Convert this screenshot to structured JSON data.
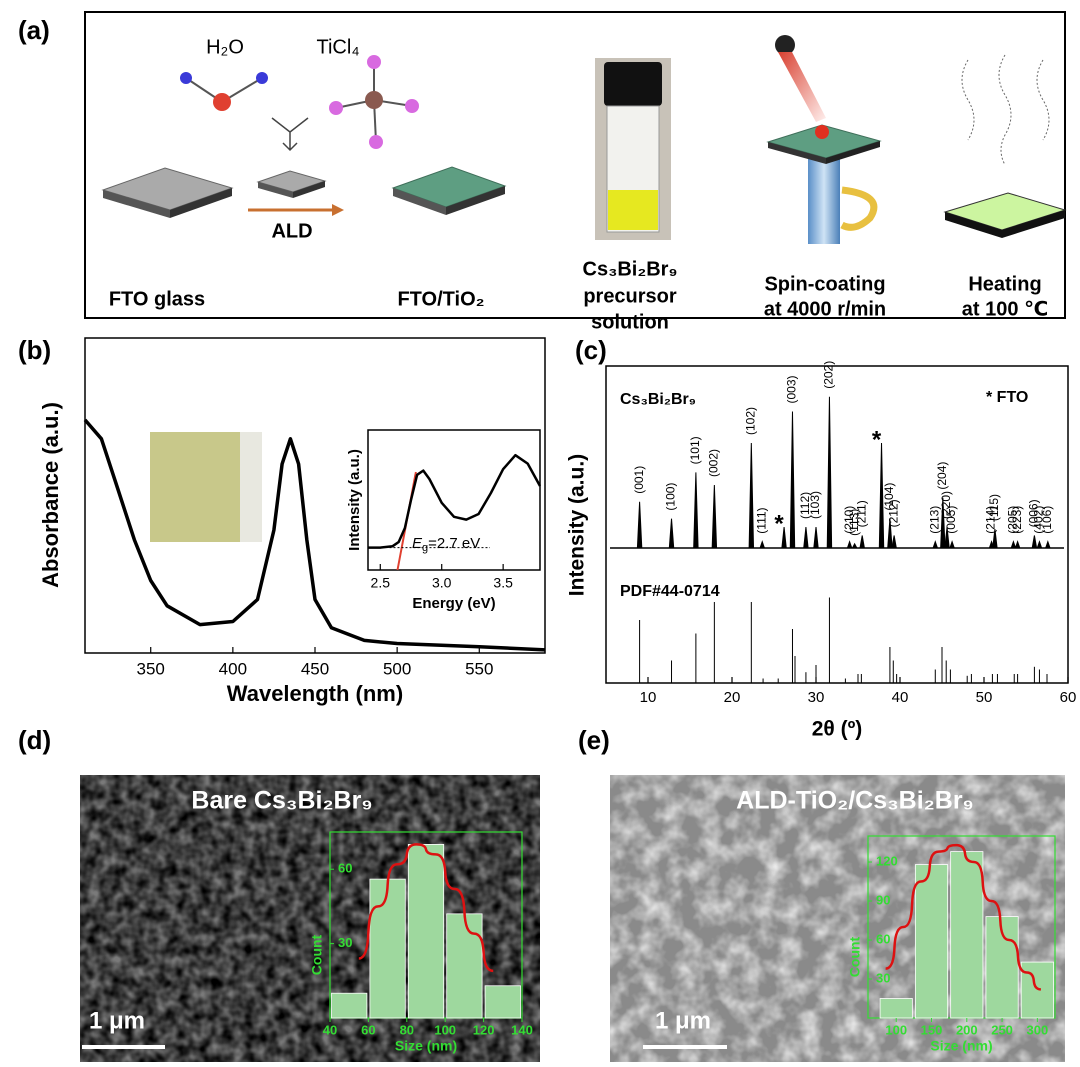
{
  "panel_labels": [
    "(a)",
    "(b)",
    "(c)",
    "(d)",
    "(e)"
  ],
  "panel_a": {
    "molecules": [
      "H₂O",
      "TiCl₄"
    ],
    "process": "ALD",
    "steps": [
      [
        "FTO glass"
      ],
      [
        "FTO/TiO₂"
      ],
      [
        "Cs₃Bi₂Br₉",
        "precursor",
        "solution"
      ],
      [
        "Spin-coating",
        "at 4000 r/min"
      ],
      [
        "Heating",
        "at 100 ℃"
      ]
    ]
  },
  "chart_data": [
    {
      "type": "line",
      "xlabel": "Wavelength (nm)",
      "ylabel": "Absorbance (a.u.)",
      "x": [
        310,
        320,
        330,
        340,
        350,
        360,
        380,
        400,
        415,
        425,
        430,
        435,
        440,
        445,
        450,
        460,
        480,
        500,
        550,
        590
      ],
      "values": [
        74,
        68,
        52,
        36,
        23,
        15,
        9,
        10,
        17,
        39,
        60,
        68,
        60,
        36,
        17,
        8,
        4,
        3,
        2,
        1
      ],
      "xlim": [
        310,
        590
      ],
      "ylim": [
        0,
        100
      ],
      "xticks": [
        350,
        400,
        450,
        500,
        550
      ],
      "color": "#000000"
    },
    {
      "type": "line",
      "xlabel": "Energy (eV)",
      "ylabel": "Intensity (a.u.)",
      "x": [
        2.4,
        2.5,
        2.6,
        2.65,
        2.7,
        2.75,
        2.8,
        2.85,
        2.9,
        3.0,
        3.1,
        3.2,
        3.3,
        3.4,
        3.5,
        3.6,
        3.7,
        3.8
      ],
      "values": [
        16,
        16,
        17,
        20,
        30,
        50,
        68,
        71,
        65,
        48,
        38,
        36,
        40,
        55,
        72,
        82,
        76,
        60
      ],
      "xlim": [
        2.4,
        3.8
      ],
      "ylim": [
        0,
        100
      ],
      "xticks": [
        2.5,
        {
          "value": 3,
          "label": "3.0"
        },
        3.5
      ],
      "color": "#000000",
      "tangent": {
        "x": [
          2.64,
          2.79
        ],
        "values": [
          0,
          70
        ],
        "color": "#e04030"
      },
      "annotation": {
        "symbol": "E",
        "subscript": "g",
        "text": "=2.7 eV"
      }
    },
    {
      "type": "xrd",
      "xlabel": "2θ (º)",
      "ylabel": "Intensity (a.u.)",
      "sample": "Cs₃Bi₂Br₉",
      "reference": "PDF#44-0714",
      "legend": "* FTO",
      "xlim": [
        5,
        60
      ],
      "xticks": [
        10,
        20,
        30,
        40,
        50,
        60
      ],
      "ylim": [
        0,
        100
      ],
      "color": "#000000",
      "peaks": [
        {
          "label": "(001)",
          "x": 9.0,
          "height": 22
        },
        {
          "label": "(100)",
          "x": 12.8,
          "height": 14
        },
        {
          "label": "(101)",
          "x": 15.7,
          "height": 36
        },
        {
          "label": "(002)",
          "x": 17.9,
          "height": 30
        },
        {
          "label": "(102)",
          "x": 22.3,
          "height": 50
        },
        {
          "label": "(111)",
          "x": 23.6,
          "height": 3
        },
        {
          "label": "*",
          "x": 26.2,
          "height": 10
        },
        {
          "label": "(003)",
          "x": 27.2,
          "height": 65
        },
        {
          "label": "(112)",
          "x": 28.8,
          "height": 10
        },
        {
          "label": "(103)",
          "x": 30.0,
          "height": 10
        },
        {
          "label": "(202)",
          "x": 31.6,
          "height": 72
        },
        {
          "label": "(210)",
          "x": 34.0,
          "height": 3
        },
        {
          "label": "(113)",
          "x": 34.6,
          "height": 2
        },
        {
          "label": "(211)",
          "x": 35.5,
          "height": 6
        },
        {
          "label": "*",
          "x": 37.8,
          "height": 50
        },
        {
          "label": "(104)",
          "x": 38.8,
          "height": 14
        },
        {
          "label": "(212)",
          "x": 39.3,
          "height": 6
        },
        {
          "label": "(213)",
          "x": 44.2,
          "height": 3
        },
        {
          "label": "(204)",
          "x": 45.1,
          "height": 24
        },
        {
          "label": "(220)",
          "x": 45.6,
          "height": 10
        },
        {
          "label": "(005)",
          "x": 46.2,
          "height": 3
        },
        {
          "label": "(214)",
          "x": 50.9,
          "height": 3
        },
        {
          "label": "(115)",
          "x": 51.3,
          "height": 9
        },
        {
          "label": "(205)",
          "x": 53.5,
          "height": 3
        },
        {
          "label": "(223)",
          "x": 54.0,
          "height": 3
        },
        {
          "label": "(006)",
          "x": 56.0,
          "height": 6
        },
        {
          "label": "(402)",
          "x": 56.6,
          "height": 3
        },
        {
          "label": "(106)",
          "x": 57.6,
          "height": 3
        }
      ],
      "ref_x": [
        9,
        12.8,
        15.7,
        17.9,
        22.3,
        23.7,
        25.5,
        27.2,
        27.5,
        28.8,
        30.0,
        31.6,
        33.5,
        35.0,
        35.4,
        38.8,
        39.2,
        39.6,
        44.2,
        45.0,
        45.5,
        46.0,
        48.0,
        48.5,
        51.0,
        51.6,
        53.6,
        54.0,
        56.0,
        56.6,
        57.5
      ],
      "ref_values": [
        70,
        25,
        55,
        90,
        90,
        5,
        5,
        60,
        30,
        12,
        20,
        95,
        5,
        10,
        10,
        40,
        25,
        10,
        15,
        40,
        25,
        15,
        8,
        10,
        10,
        10,
        10,
        10,
        18,
        15,
        10
      ]
    },
    {
      "type": "histogram",
      "xlabel": "Size (nm)",
      "ylabel": "Count",
      "bins": [
        40,
        60,
        80,
        100,
        120,
        140
      ],
      "values": [
        10,
        56,
        70,
        42,
        13
      ],
      "xlim": [
        40,
        140
      ],
      "ylim": [
        0,
        75
      ],
      "xticks": [
        40,
        60,
        80,
        100,
        120,
        140
      ],
      "yticks": [
        30,
        60
      ],
      "color": "#9ed89e",
      "axis_color": "#33dd33",
      "fit": {
        "x": [
          55,
          65,
          75,
          85,
          95,
          105,
          115,
          125
        ],
        "values": [
          24,
          45,
          62,
          70,
          66,
          52,
          34,
          19
        ],
        "color": "#dd1111"
      }
    },
    {
      "type": "histogram",
      "xlabel": "Size (nm)",
      "ylabel": "Count",
      "bins": [
        75,
        125,
        175,
        225,
        275,
        325
      ],
      "values": [
        15,
        118,
        128,
        78,
        43
      ],
      "xlim": [
        60,
        325
      ],
      "ylim": [
        0,
        140
      ],
      "xticks": [
        100,
        150,
        200,
        250,
        300
      ],
      "yticks": [
        30,
        60,
        90,
        120
      ],
      "color": "#9ed89e",
      "axis_color": "#33dd33",
      "fit": {
        "x": [
          85,
          110,
          135,
          160,
          185,
          210,
          235,
          260,
          285,
          305
        ],
        "values": [
          38,
          70,
          105,
          128,
          133,
          120,
          90,
          60,
          35,
          22
        ],
        "color": "#dd1111"
      }
    }
  ],
  "sem": [
    {
      "label": "Bare Cs₃Bi₂Br₉",
      "scale": "1 μm"
    },
    {
      "label": "ALD-TiO₂/Cs₃Bi₂Br₉",
      "scale": "1 μm"
    }
  ]
}
